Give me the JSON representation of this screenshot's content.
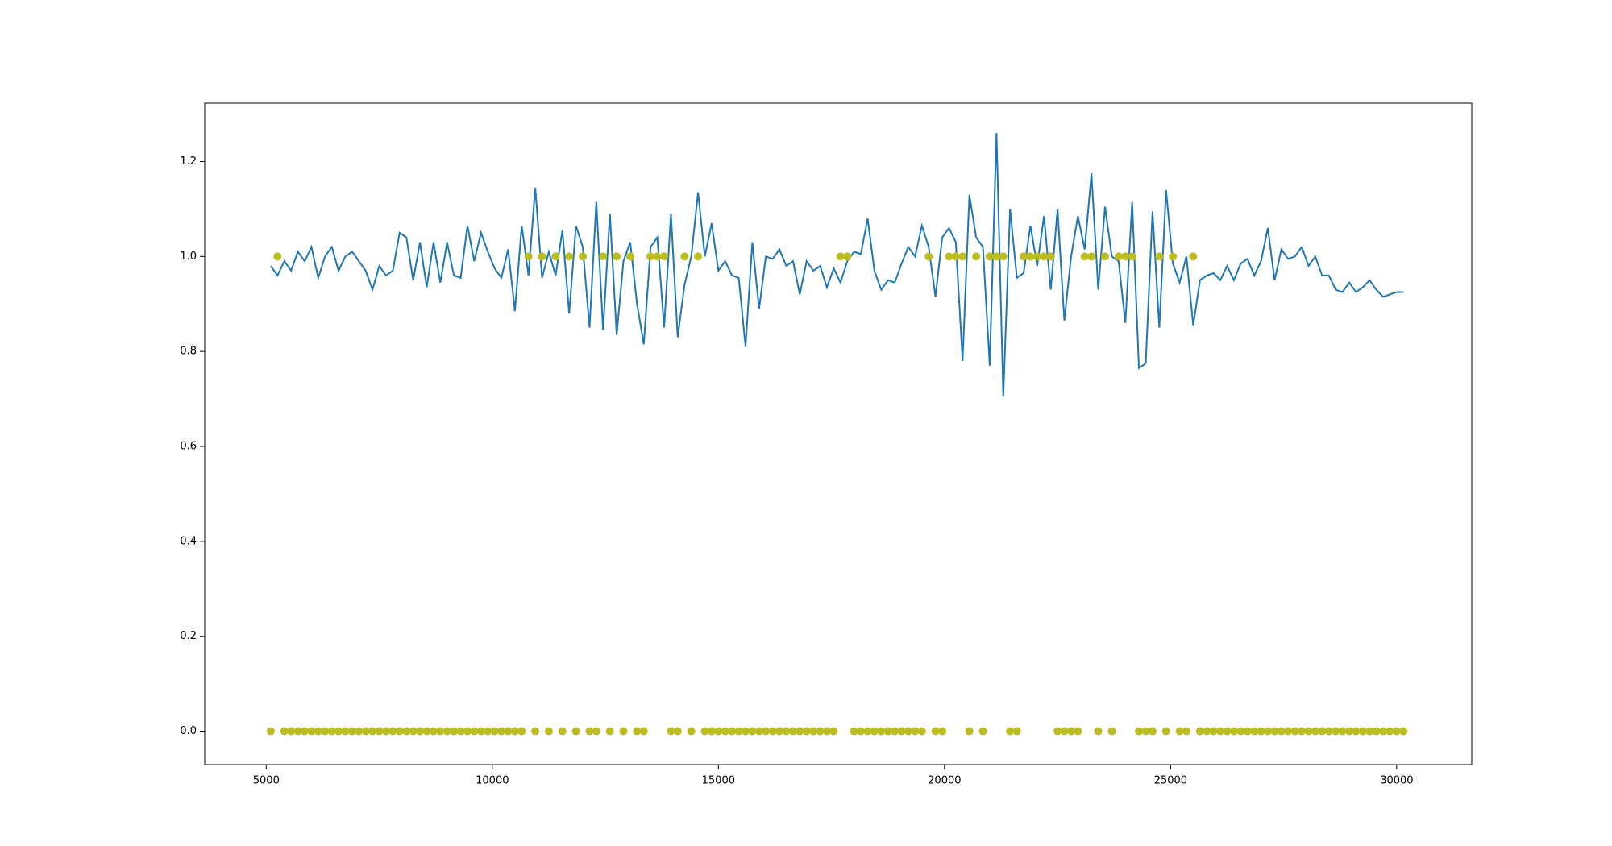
{
  "chart_data": {
    "type": "line",
    "x": [
      5100,
      5250,
      5400,
      5550,
      5700,
      5850,
      6000,
      6150,
      6300,
      6450,
      6600,
      6750,
      6900,
      7050,
      7200,
      7350,
      7500,
      7650,
      7800,
      7950,
      8100,
      8250,
      8400,
      8550,
      8700,
      8850,
      9000,
      9150,
      9300,
      9450,
      9600,
      9750,
      9900,
      10050,
      10200,
      10350,
      10500,
      10650,
      10800,
      10950,
      11100,
      11250,
      11400,
      11550,
      11700,
      11850,
      12000,
      12150,
      12300,
      12450,
      12600,
      12750,
      12900,
      13050,
      13200,
      13350,
      13500,
      13650,
      13800,
      13950,
      14100,
      14250,
      14400,
      14550,
      14700,
      14850,
      15000,
      15150,
      15300,
      15450,
      15600,
      15750,
      15900,
      16050,
      16200,
      16350,
      16500,
      16650,
      16800,
      16950,
      17100,
      17250,
      17400,
      17550,
      17700,
      17850,
      18000,
      18150,
      18300,
      18450,
      18600,
      18750,
      18900,
      19050,
      19200,
      19350,
      19500,
      19650,
      19800,
      19950,
      20100,
      20250,
      20400,
      20550,
      20700,
      20850,
      21000,
      21150,
      21300,
      21450,
      21600,
      21750,
      21900,
      22050,
      22200,
      22350,
      22500,
      22650,
      22800,
      22950,
      23100,
      23250,
      23400,
      23550,
      23700,
      23850,
      24000,
      24150,
      24300,
      24450,
      24600,
      24750,
      24900,
      25050,
      25200,
      25350,
      25500,
      25650,
      25800,
      25950,
      26100,
      26250,
      26400,
      26550,
      26700,
      26850,
      27000,
      27150,
      27300,
      27450,
      27600,
      27750,
      27900,
      28050,
      28200,
      28350,
      28500,
      28650,
      28800,
      28950,
      29100,
      29250,
      29400,
      29550,
      29700,
      29850,
      30000,
      30150
    ],
    "series": [
      {
        "style": "line",
        "color": "#1f77b4",
        "values": [
          0.98,
          0.96,
          0.99,
          0.97,
          1.01,
          0.99,
          1.02,
          0.955,
          1.0,
          1.02,
          0.97,
          1.0,
          1.01,
          0.99,
          0.97,
          0.93,
          0.98,
          0.96,
          0.97,
          1.05,
          1.04,
          0.95,
          1.03,
          0.935,
          1.03,
          0.945,
          1.03,
          0.96,
          0.955,
          1.065,
          0.99,
          1.05,
          1.01,
          0.975,
          0.955,
          1.015,
          0.885,
          1.065,
          0.96,
          1.145,
          0.955,
          1.01,
          0.96,
          1.055,
          0.88,
          1.065,
          1.02,
          0.85,
          1.115,
          0.845,
          1.09,
          0.835,
          0.99,
          1.03,
          0.9,
          0.815,
          1.02,
          1.04,
          0.85,
          1.09,
          0.83,
          0.94,
          1.0,
          1.135,
          1.0,
          1.07,
          0.97,
          0.99,
          0.96,
          0.955,
          0.81,
          1.03,
          0.89,
          1.0,
          0.995,
          1.015,
          0.98,
          0.99,
          0.92,
          0.99,
          0.97,
          0.98,
          0.935,
          0.975,
          0.945,
          0.99,
          1.01,
          1.005,
          1.08,
          0.97,
          0.93,
          0.95,
          0.945,
          0.985,
          1.02,
          1.0,
          1.065,
          1.02,
          0.915,
          1.04,
          1.06,
          1.03,
          0.78,
          1.13,
          1.04,
          1.02,
          0.77,
          1.26,
          0.705,
          1.1,
          0.955,
          0.965,
          1.065,
          0.98,
          1.085,
          0.93,
          1.1,
          0.865,
          1.0,
          1.085,
          1.015,
          1.175,
          0.93,
          1.105,
          1.0,
          0.99,
          0.86,
          1.115,
          0.765,
          0.775,
          1.095,
          0.85,
          1.14,
          0.985,
          0.945,
          1.0,
          0.855,
          0.95,
          0.96,
          0.965,
          0.95,
          0.98,
          0.95,
          0.985,
          0.995,
          0.96,
          0.99,
          1.06,
          0.95,
          1.015,
          0.995,
          1.0,
          1.02,
          0.98,
          1.0,
          0.96,
          0.96,
          0.93,
          0.925,
          0.945,
          0.925,
          0.935,
          0.95,
          0.93,
          0.915,
          0.92,
          0.925,
          0.925
        ]
      },
      {
        "style": "markers",
        "color": "#bcbd22",
        "values": [
          0,
          1,
          0,
          0,
          0,
          0,
          0,
          0,
          0,
          0,
          0,
          0,
          0,
          0,
          0,
          0,
          0,
          0,
          0,
          0,
          0,
          0,
          0,
          0,
          0,
          0,
          0,
          0,
          0,
          0,
          0,
          0,
          0,
          0,
          0,
          0,
          0,
          0,
          1,
          0,
          1,
          0,
          1,
          0,
          1,
          0,
          1,
          0,
          0,
          1,
          0,
          1,
          0,
          1,
          0,
          0,
          1,
          1,
          1,
          0,
          0,
          1,
          0,
          1,
          0,
          0,
          0,
          0,
          0,
          0,
          0,
          0,
          0,
          0,
          0,
          0,
          0,
          0,
          0,
          0,
          0,
          0,
          0,
          0,
          1,
          1,
          0,
          0,
          0,
          0,
          0,
          0,
          0,
          0,
          0,
          0,
          0,
          1,
          0,
          0,
          1,
          1,
          1,
          0,
          1,
          0,
          1,
          1,
          1,
          0,
          0,
          1,
          1,
          1,
          1,
          1,
          0,
          0,
          0,
          0,
          1,
          1,
          0,
          1,
          0,
          1,
          1,
          1,
          0,
          0,
          0,
          1,
          0,
          1,
          0,
          0,
          1,
          0,
          0,
          0,
          0,
          0,
          0,
          0,
          0,
          0,
          0,
          0,
          0,
          0,
          0,
          0,
          0,
          0,
          0,
          0,
          0,
          0,
          0,
          0,
          0,
          0,
          0,
          0,
          0,
          0,
          0,
          0
        ]
      }
    ],
    "xlim": [
      3640,
      31660
    ],
    "ylim": [
      -0.0703,
      1.323
    ],
    "xticks": [
      5000,
      10000,
      15000,
      20000,
      25000,
      30000
    ],
    "yticks": [
      {
        "value": 0,
        "label": "0.0"
      },
      0.2,
      0.4,
      0.6,
      0.8,
      {
        "value": 1,
        "label": "1.0"
      },
      1.2
    ],
    "grid": false
  }
}
